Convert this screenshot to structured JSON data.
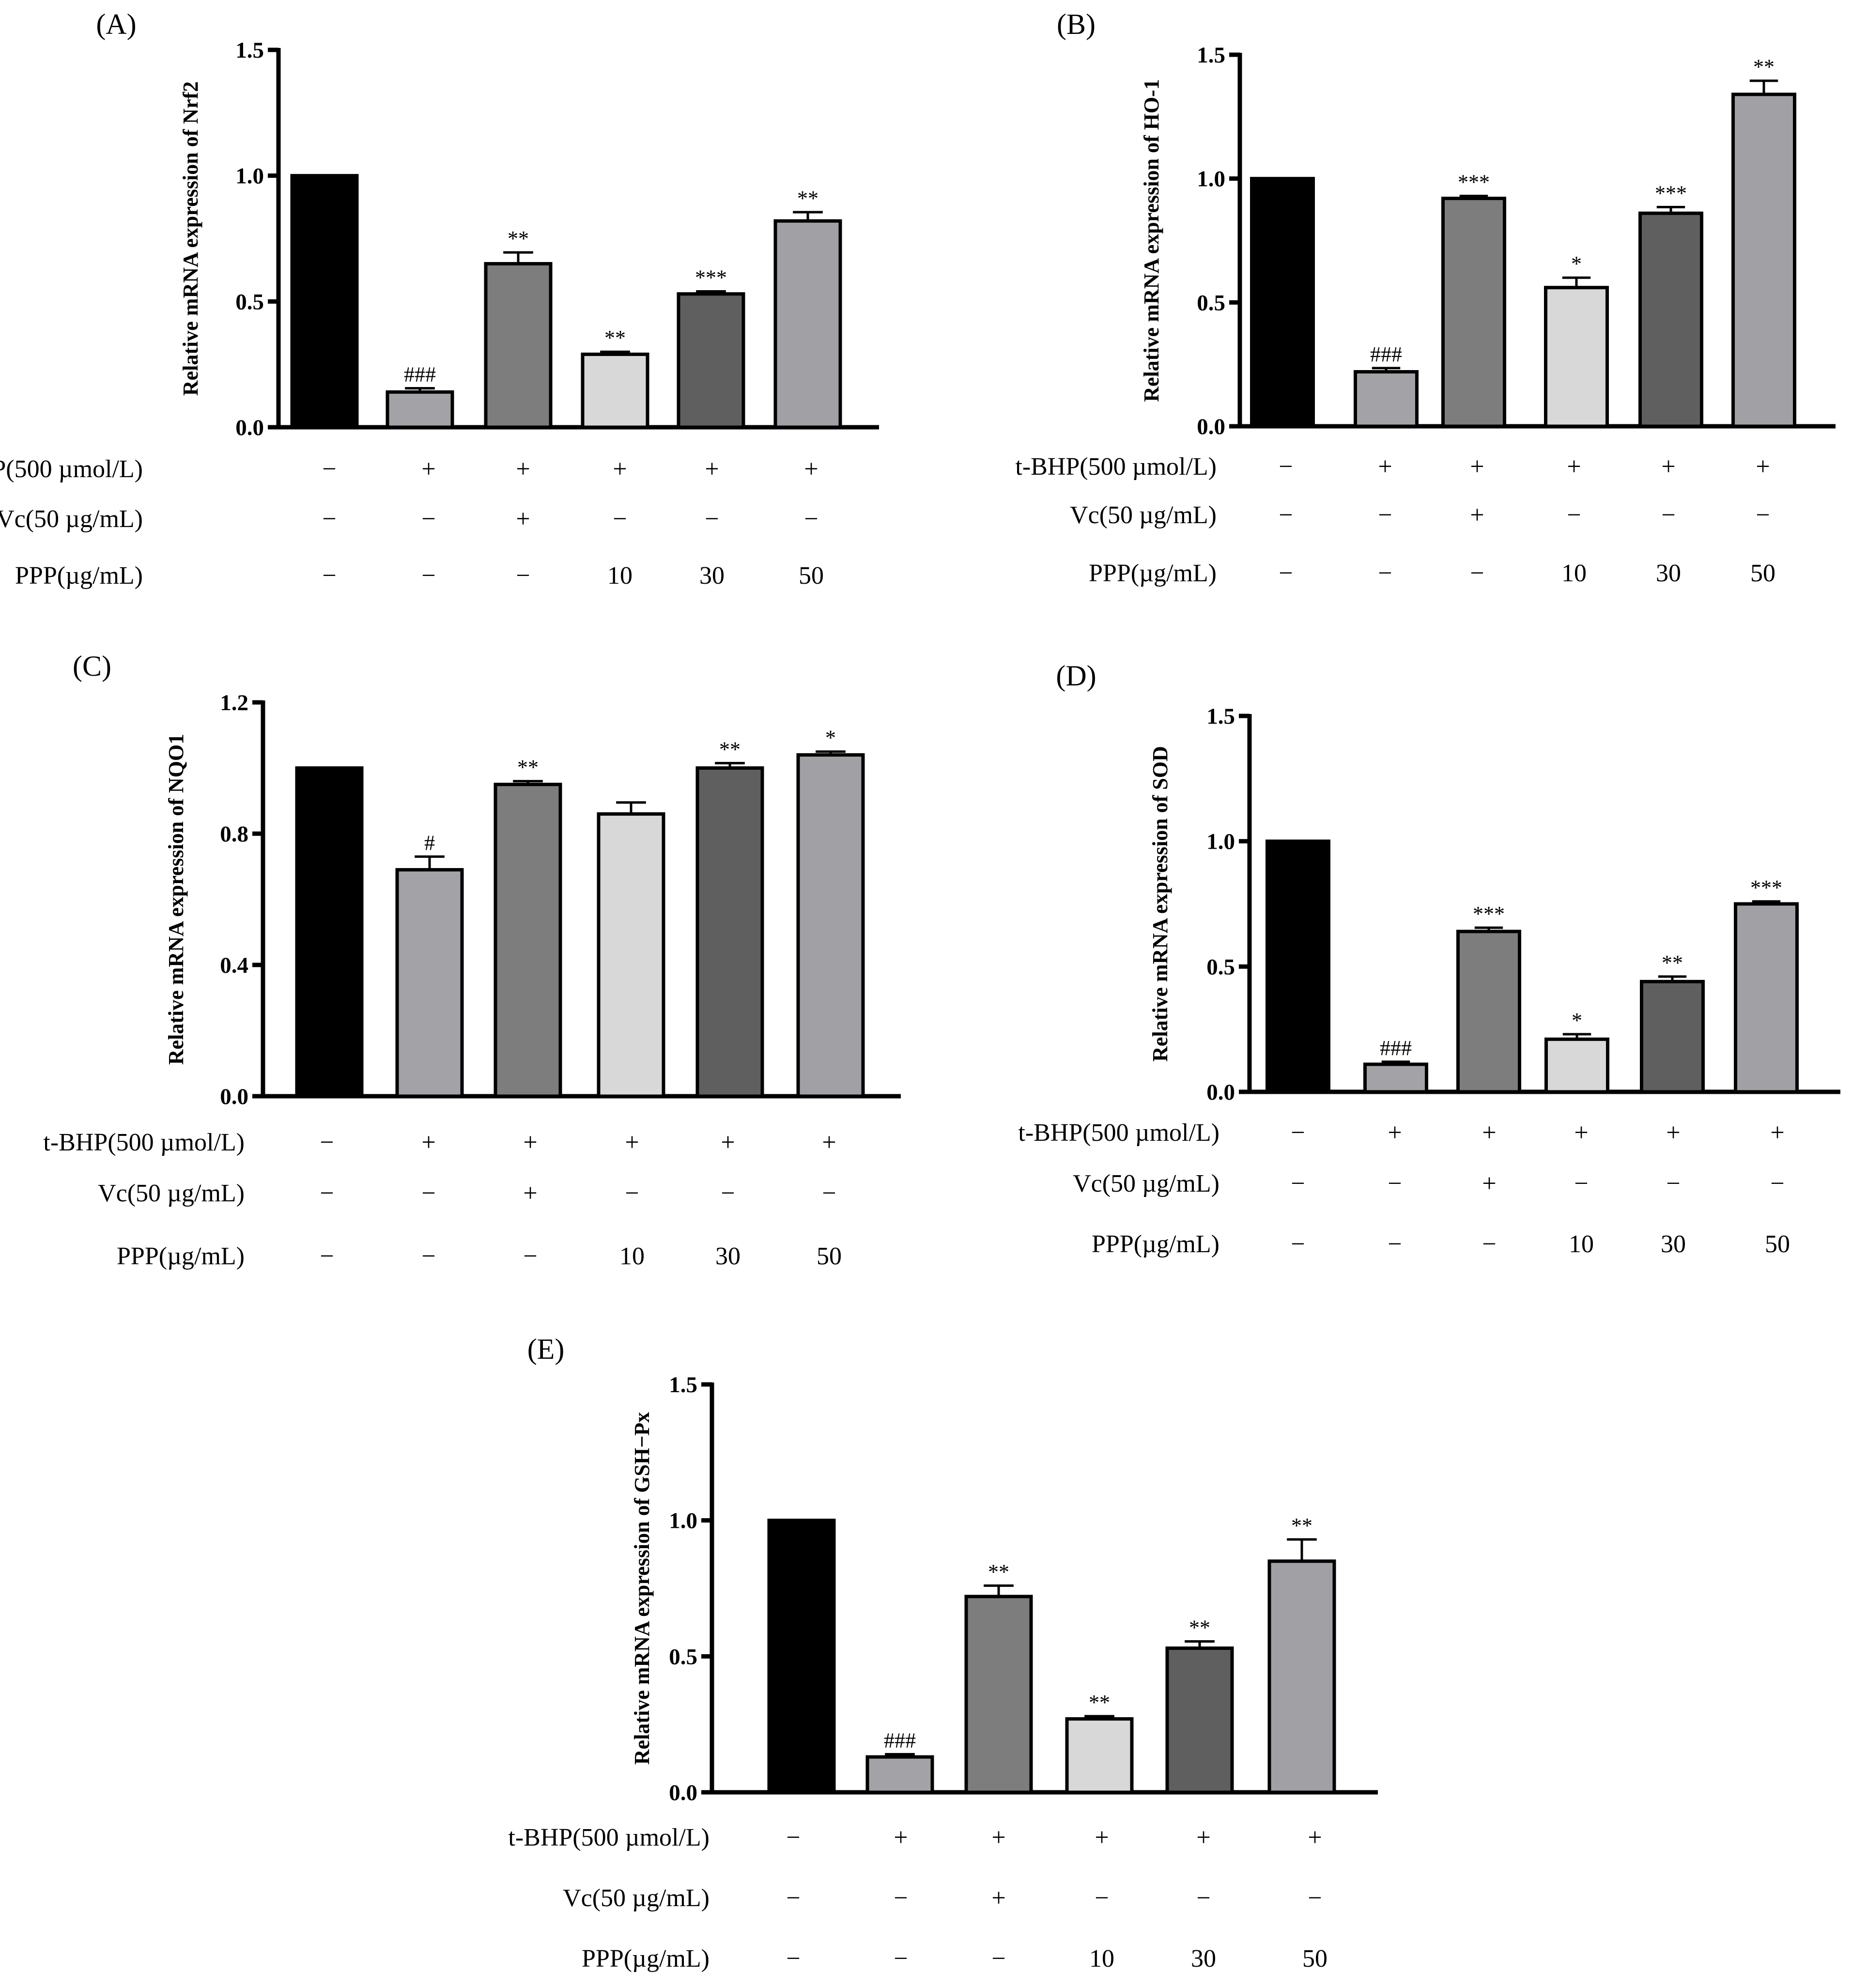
{
  "row_labels": [
    "t-BHP(500 µmol/L)",
    "Vc(50 µg/mL)",
    "PPP(µg/mL)"
  ],
  "treatment_values": [
    [
      "−",
      "+",
      "+",
      "+",
      "+",
      "+"
    ],
    [
      "−",
      "−",
      "+",
      "−",
      "−",
      "−"
    ],
    [
      "−",
      "−",
      "−",
      "10",
      "30",
      "50"
    ]
  ],
  "bar_colors": [
    "#000000",
    "#a3a2a7",
    "#7d7d7d",
    "#d8d8d8",
    "#5f5f5f",
    "#a0a0a5"
  ],
  "chart_data": [
    {
      "panel": "(A)",
      "type": "bar",
      "ylabel": "Relative mRNA expression of Nrf2",
      "ylim": [
        0,
        1.5
      ],
      "yticks": [
        "0.0",
        "0.5",
        "1.0",
        "1.5"
      ],
      "values": [
        1.0,
        0.14,
        0.65,
        0.29,
        0.53,
        0.82
      ],
      "errors": [
        0,
        0.015,
        0.045,
        0.01,
        0.01,
        0.035
      ],
      "significance": [
        "",
        "###",
        "**",
        "**",
        "***",
        "**"
      ]
    },
    {
      "panel": "(B)",
      "type": "bar",
      "ylabel": "Relative mRNA expression of HO-1",
      "ylim": [
        0,
        1.5
      ],
      "yticks": [
        "0.0",
        "0.5",
        "1.0",
        "1.5"
      ],
      "values": [
        1.0,
        0.22,
        0.92,
        0.56,
        0.86,
        1.34
      ],
      "errors": [
        0,
        0.015,
        0.01,
        0.04,
        0.025,
        0.055
      ],
      "significance": [
        "",
        "###",
        "***",
        "*",
        "***",
        "**"
      ]
    },
    {
      "panel": "(C)",
      "type": "bar",
      "ylabel": "Relative mRNA expression of NQO1",
      "ylim": [
        0,
        1.2
      ],
      "yticks": [
        "0.0",
        "0.4",
        "0.8",
        "1.2"
      ],
      "values": [
        1.0,
        0.69,
        0.95,
        0.86,
        1.0,
        1.04
      ],
      "errors": [
        0,
        0.04,
        0.01,
        0.035,
        0.015,
        0.01
      ],
      "significance": [
        "",
        "#",
        "**",
        "",
        "**",
        "*"
      ]
    },
    {
      "panel": "(D)",
      "type": "bar",
      "ylabel": "Relative mRNA expression of SOD",
      "ylim": [
        0,
        1.5
      ],
      "yticks": [
        "0.0",
        "0.5",
        "1.0",
        "1.5"
      ],
      "values": [
        1.0,
        0.11,
        0.64,
        0.21,
        0.44,
        0.75
      ],
      "errors": [
        0,
        0.01,
        0.015,
        0.02,
        0.02,
        0.01
      ],
      "significance": [
        "",
        "###",
        "***",
        "*",
        "**",
        "***"
      ]
    },
    {
      "panel": "(E)",
      "type": "bar",
      "ylabel": "Relative mRNA expression of GSH−Px",
      "ylim": [
        0,
        1.5
      ],
      "yticks": [
        "0.0",
        "0.5",
        "1.0",
        "1.5"
      ],
      "values": [
        1.0,
        0.13,
        0.72,
        0.27,
        0.53,
        0.85
      ],
      "errors": [
        0,
        0.01,
        0.04,
        0.01,
        0.025,
        0.08
      ],
      "significance": [
        "",
        "###",
        "**",
        "**",
        "**",
        "**"
      ]
    }
  ]
}
